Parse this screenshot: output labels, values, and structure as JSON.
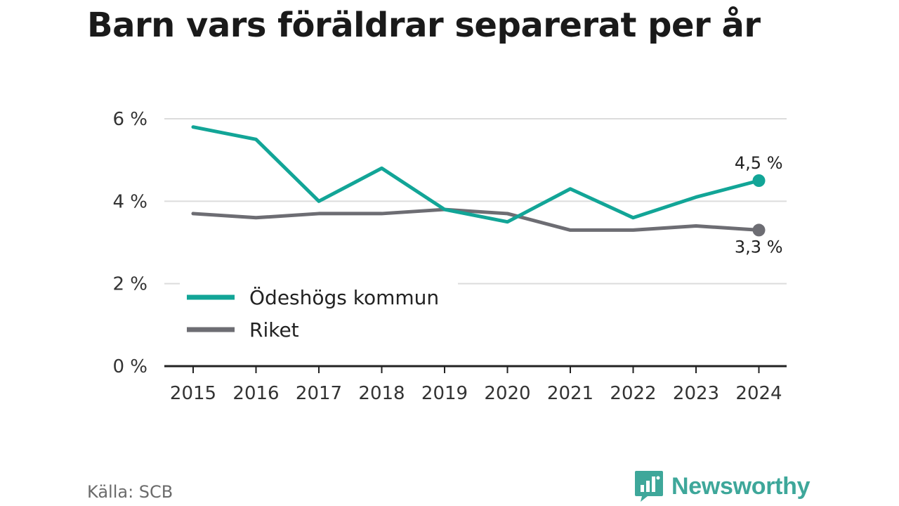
{
  "title": "Barn vars föräldrar separerat per år",
  "source": "Källa: SCB",
  "logo": {
    "text": "Newsworthy",
    "icon": "chart-bubble-icon"
  },
  "chart_data": {
    "type": "line",
    "x": [
      "2015",
      "2016",
      "2017",
      "2018",
      "2019",
      "2020",
      "2021",
      "2022",
      "2023",
      "2024"
    ],
    "ylim": [
      0,
      6
    ],
    "y_ticks": [
      0,
      2,
      4,
      6
    ],
    "y_tick_labels": [
      "0 %",
      "2 %",
      "4 %",
      "6 %"
    ],
    "grid": true,
    "legend": "bottom-left",
    "series": [
      {
        "name": "Ödeshögs kommun",
        "color": "#12a597",
        "values": [
          5.8,
          5.5,
          4.0,
          4.8,
          3.8,
          3.5,
          4.3,
          3.6,
          4.1,
          4.5
        ],
        "end_label": "4,5 %"
      },
      {
        "name": "Riket",
        "color": "#6d6d73",
        "values": [
          3.7,
          3.6,
          3.7,
          3.7,
          3.8,
          3.7,
          3.3,
          3.3,
          3.4,
          3.3
        ],
        "end_label": "3,3 %"
      }
    ]
  }
}
